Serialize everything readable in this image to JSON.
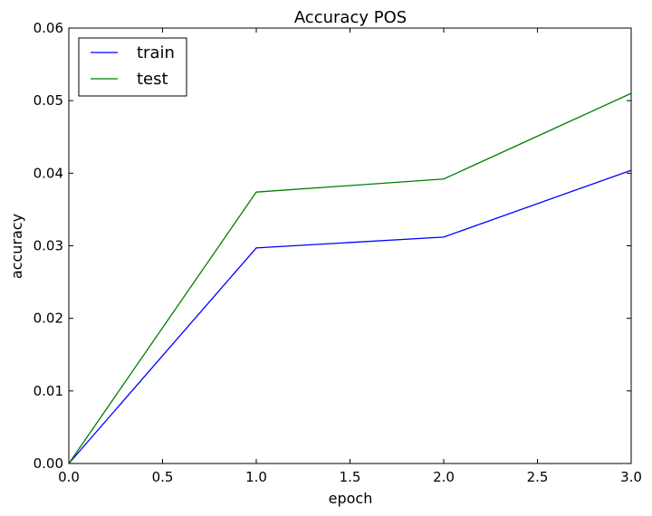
{
  "chart_data": {
    "type": "line",
    "title": "Accuracy POS",
    "xlabel": "epoch",
    "ylabel": "accuracy",
    "xlim": [
      0.0,
      3.0
    ],
    "ylim": [
      0.0,
      0.06
    ],
    "xticks": [
      "0.0",
      "0.5",
      "1.0",
      "1.5",
      "2.0",
      "2.5",
      "3.0"
    ],
    "yticks": [
      "0.00",
      "0.01",
      "0.02",
      "0.03",
      "0.04",
      "0.05",
      "0.06"
    ],
    "x": [
      0,
      1,
      2,
      3
    ],
    "series": [
      {
        "name": "train",
        "color": "#0000ff",
        "values": [
          0.0,
          0.0297,
          0.0312,
          0.0404
        ]
      },
      {
        "name": "test",
        "color": "#008000",
        "values": [
          0.0,
          0.0374,
          0.0392,
          0.051
        ]
      }
    ],
    "grid": false,
    "legend_position": "top-left"
  }
}
